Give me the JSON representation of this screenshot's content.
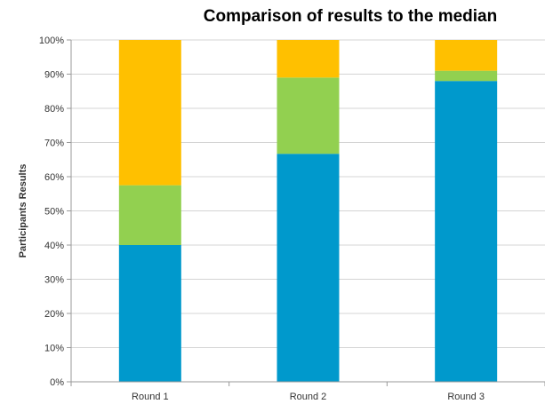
{
  "chart_data": {
    "type": "bar",
    "stacked": true,
    "percent": true,
    "title": "Comparison of results to the median",
    "xlabel": "",
    "ylabel": "Participants Results",
    "ylim": [
      0,
      100
    ],
    "yticks": [
      "0%",
      "10%",
      "20%",
      "30%",
      "40%",
      "50%",
      "60%",
      "70%",
      "80%",
      "90%",
      "100%"
    ],
    "categories": [
      "Round 1",
      "Round 2",
      "Round 3"
    ],
    "grid": true,
    "legend": "none",
    "series": [
      {
        "color": "#0099CC",
        "values": [
          40,
          66.7,
          88
        ]
      },
      {
        "color": "#92D050",
        "values": [
          17.5,
          22.3,
          3
        ]
      },
      {
        "color": "#FFC000",
        "values": [
          42.5,
          11,
          9
        ]
      }
    ]
  }
}
